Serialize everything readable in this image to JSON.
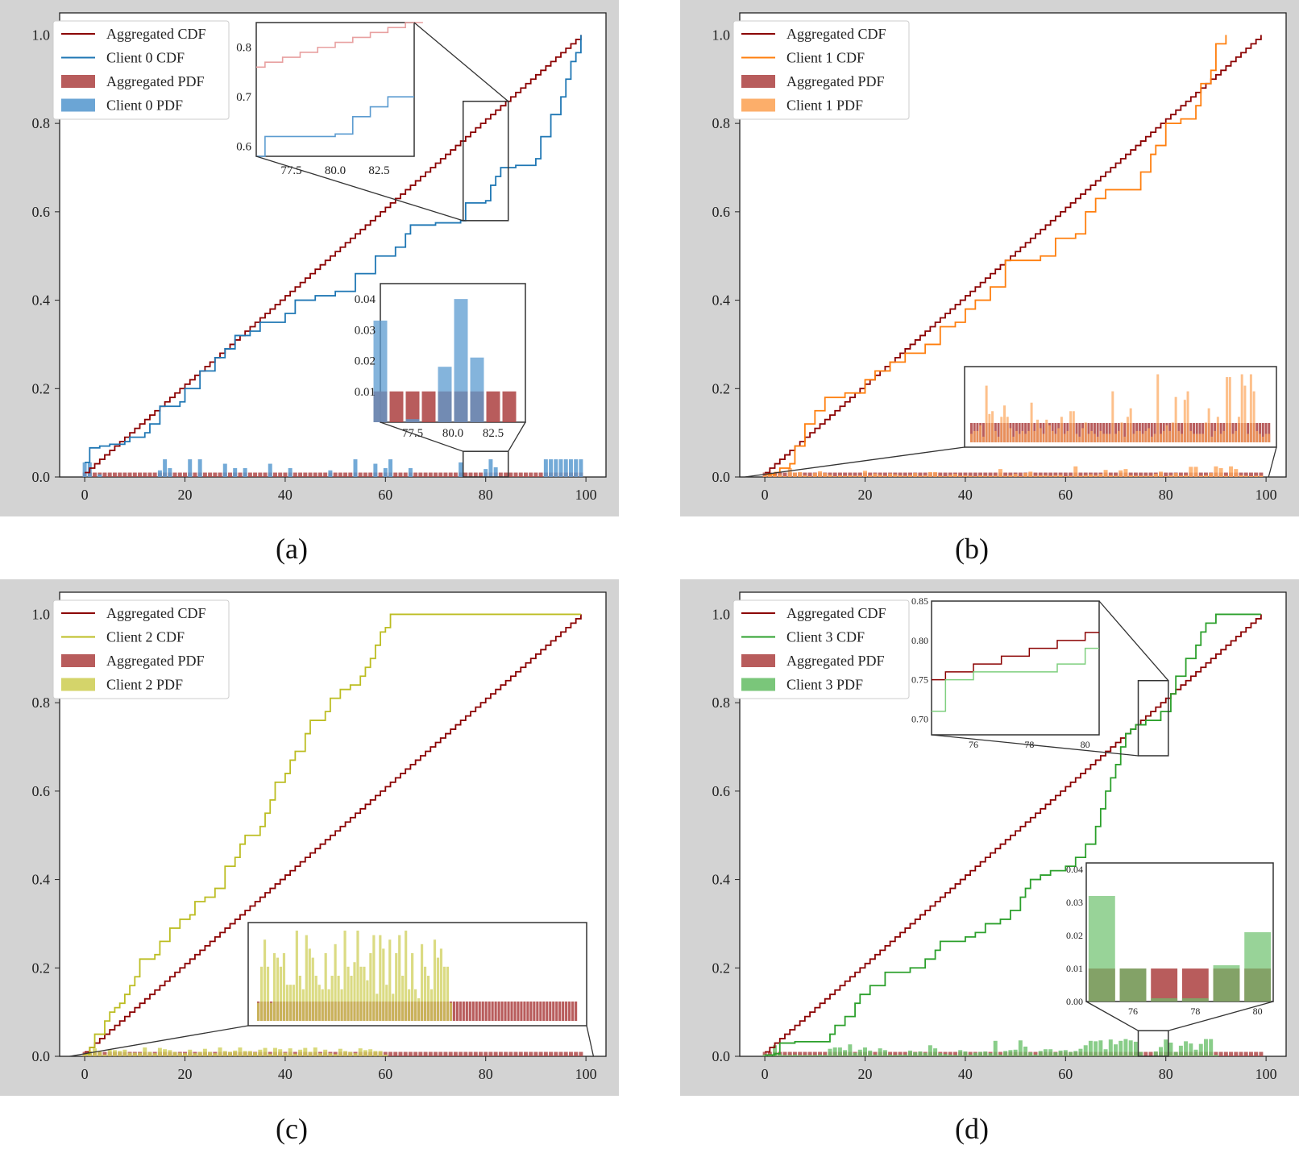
{
  "colors": {
    "aggregated": "#8b0000",
    "aggregated_bar": "#b04a4a",
    "client0": "#1f77b4",
    "client0_bar": "#5b9bd0",
    "client1": "#ff7f0e",
    "client1_bar": "#fca55a",
    "client2": "#bcbd22",
    "client2_bar": "#cfcf5a",
    "client3": "#2ca02c",
    "client3_bar": "#6cc06c",
    "overlap": "#4a5a8a",
    "panel_bg": "#d3d3d3"
  },
  "captions": [
    "(a)",
    "(b)",
    "(c)",
    "(d)"
  ],
  "chart_data": [
    {
      "type": "line",
      "caption": "(a)",
      "client": 0,
      "legend": [
        "Aggregated CDF",
        "Client 0 CDF",
        "Aggregated PDF",
        "Client 0 PDF"
      ],
      "xlim": [
        -5,
        104
      ],
      "ylim": [
        0,
        1.05
      ],
      "xticks": [
        "0",
        "20",
        "40",
        "60",
        "80",
        "100"
      ],
      "yticks": [
        "0.0",
        "0.2",
        "0.4",
        "0.6",
        "0.8",
        "1.0"
      ],
      "aggregated_cdf": "uniform step 0.01 per unit over 0-99",
      "client_cdf_points": [
        [
          0,
          0.033
        ],
        [
          1,
          0.066
        ],
        [
          3,
          0.07
        ],
        [
          5,
          0.074
        ],
        [
          8,
          0.08
        ],
        [
          9,
          0.09
        ],
        [
          12,
          0.1
        ],
        [
          13,
          0.12
        ],
        [
          15,
          0.16
        ],
        [
          19,
          0.17
        ],
        [
          20,
          0.2
        ],
        [
          23,
          0.24
        ],
        [
          26,
          0.27
        ],
        [
          28,
          0.29
        ],
        [
          30,
          0.32
        ],
        [
          33,
          0.33
        ],
        [
          35,
          0.35
        ],
        [
          40,
          0.37
        ],
        [
          42,
          0.4
        ],
        [
          46,
          0.41
        ],
        [
          50,
          0.42
        ],
        [
          54,
          0.46
        ],
        [
          58,
          0.5
        ],
        [
          62,
          0.52
        ],
        [
          64,
          0.55
        ],
        [
          65,
          0.57
        ],
        [
          70,
          0.575
        ],
        [
          75,
          0.58
        ],
        [
          76,
          0.62
        ],
        [
          80,
          0.625
        ],
        [
          81,
          0.66
        ],
        [
          82,
          0.68
        ],
        [
          83,
          0.7
        ],
        [
          86,
          0.705
        ],
        [
          90,
          0.72
        ],
        [
          91,
          0.77
        ],
        [
          93,
          0.82
        ],
        [
          95,
          0.86
        ],
        [
          96,
          0.9
        ],
        [
          97,
          0.94
        ],
        [
          98,
          0.96
        ],
        [
          99,
          1.0
        ]
      ],
      "client_pdf_spikes": [
        [
          0,
          0.033
        ],
        [
          1,
          0.033
        ],
        [
          3,
          0.006
        ],
        [
          15,
          0.015
        ],
        [
          16,
          0.04
        ],
        [
          17,
          0.02
        ],
        [
          21,
          0.04
        ],
        [
          23,
          0.04
        ],
        [
          28,
          0.03
        ],
        [
          30,
          0.02
        ],
        [
          32,
          0.02
        ],
        [
          37,
          0.03
        ],
        [
          41,
          0.02
        ],
        [
          49,
          0.015
        ],
        [
          54,
          0.04
        ],
        [
          58,
          0.03
        ],
        [
          60,
          0.02
        ],
        [
          61,
          0.04
        ],
        [
          65,
          0.02
        ],
        [
          75,
          0.033
        ],
        [
          80,
          0.018
        ],
        [
          81,
          0.04
        ],
        [
          82,
          0.022
        ],
        [
          92,
          0.04
        ],
        [
          93,
          0.04
        ],
        [
          94,
          0.04
        ],
        [
          95,
          0.04
        ],
        [
          96,
          0.04
        ],
        [
          97,
          0.04
        ],
        [
          98,
          0.04
        ],
        [
          99,
          0.04
        ]
      ],
      "insets": [
        {
          "kind": "cdf",
          "xticks": [
            "77.5",
            "80.0",
            "82.5"
          ],
          "yticks": [
            "0.6",
            "0.7",
            "0.8"
          ],
          "xlim": [
            75.5,
            84.5
          ],
          "ylim": [
            0.58,
            0.85
          ]
        },
        {
          "kind": "pdf",
          "xticks": [
            "77.5",
            "80.0",
            "82.5"
          ],
          "yticks": [
            "0.01",
            "0.02",
            "0.03",
            "0.04"
          ],
          "xlim": [
            75.5,
            84.5
          ],
          "ylim": [
            0,
            0.045
          ]
        }
      ]
    },
    {
      "type": "line",
      "caption": "(b)",
      "client": 1,
      "legend": [
        "Aggregated CDF",
        "Client 1 CDF",
        "Aggregated PDF",
        "Client 1 PDF"
      ],
      "xlim": [
        -5,
        104
      ],
      "ylim": [
        0,
        1.05
      ],
      "xticks": [
        "0",
        "20",
        "40",
        "60",
        "80",
        "100"
      ],
      "yticks": [
        "0.0",
        "0.2",
        "0.4",
        "0.6",
        "0.8",
        "1.0"
      ],
      "client_cdf_points": [
        [
          0,
          0.005
        ],
        [
          2,
          0.01
        ],
        [
          3,
          0.02
        ],
        [
          5,
          0.03
        ],
        [
          6,
          0.07
        ],
        [
          8,
          0.12
        ],
        [
          10,
          0.15
        ],
        [
          12,
          0.18
        ],
        [
          16,
          0.19
        ],
        [
          20,
          0.22
        ],
        [
          22,
          0.24
        ],
        [
          25,
          0.26
        ],
        [
          28,
          0.28
        ],
        [
          32,
          0.3
        ],
        [
          35,
          0.34
        ],
        [
          38,
          0.35
        ],
        [
          40,
          0.38
        ],
        [
          42,
          0.4
        ],
        [
          45,
          0.43
        ],
        [
          48,
          0.49
        ],
        [
          55,
          0.5
        ],
        [
          58,
          0.54
        ],
        [
          62,
          0.55
        ],
        [
          64,
          0.6
        ],
        [
          66,
          0.63
        ],
        [
          68,
          0.65
        ],
        [
          75,
          0.69
        ],
        [
          77,
          0.73
        ],
        [
          78,
          0.75
        ],
        [
          80,
          0.8
        ],
        [
          83,
          0.81
        ],
        [
          86,
          0.84
        ],
        [
          87,
          0.89
        ],
        [
          89,
          0.92
        ],
        [
          90,
          0.98
        ],
        [
          92,
          1.0
        ]
      ],
      "client_pdf_heights": [
        0.003,
        0.004,
        0.004,
        0.006,
        0.002,
        0.02,
        0.01,
        0.011,
        0.004,
        0.002,
        0.009,
        0.013,
        0.009,
        0.005,
        0.002,
        0.004,
        0.003,
        0.004,
        0.003,
        0.004,
        0.014,
        0.004,
        0.008,
        0.005,
        0.003,
        0.008,
        0.006,
        0.004,
        0.003,
        0.005,
        0.009,
        0.003,
        0.004,
        0.011,
        0.011,
        0.003,
        0.002,
        0.005,
        0.007,
        0.003,
        0.004,
        0.003,
        0.002,
        0.004,
        0.003,
        0.003,
        0.003,
        0.018,
        0.003,
        0.004,
        0.007,
        0.002,
        0.009,
        0.012,
        0.003,
        0.004,
        0.004,
        0.003,
        0.004,
        0.005,
        0.002,
        0.003,
        0.024,
        0.003,
        0.004,
        0.006,
        0.004,
        0.007,
        0.016,
        0.004,
        0.003,
        0.015,
        0.018,
        0.004,
        0.003,
        0.003,
        0.003,
        0.003,
        0.007,
        0.012,
        0.002,
        0.004,
        0.009,
        0.003,
        0.004,
        0.023,
        0.023,
        0.003,
        0.004,
        0.009,
        0.024,
        0.02,
        0.003,
        0.024,
        0.018,
        0.004,
        0.003,
        0.002,
        0.003,
        0.003
      ]
    },
    {
      "type": "line",
      "caption": "(c)",
      "client": 2,
      "legend": [
        "Aggregated CDF",
        "Client 2 CDF",
        "Aggregated PDF",
        "Client 2 PDF"
      ],
      "xlim": [
        -5,
        104
      ],
      "ylim": [
        0,
        1.05
      ],
      "xticks": [
        "0",
        "20",
        "40",
        "60",
        "80",
        "100"
      ],
      "yticks": [
        "0.0",
        "0.2",
        "0.4",
        "0.6",
        "0.8",
        "1.0"
      ],
      "client_cdf_points": [
        [
          0,
          0.005
        ],
        [
          1,
          0.02
        ],
        [
          2,
          0.05
        ],
        [
          4,
          0.08
        ],
        [
          5,
          0.1
        ],
        [
          6,
          0.11
        ],
        [
          7,
          0.12
        ],
        [
          8,
          0.14
        ],
        [
          9,
          0.16
        ],
        [
          10,
          0.18
        ],
        [
          11,
          0.22
        ],
        [
          14,
          0.23
        ],
        [
          15,
          0.26
        ],
        [
          17,
          0.29
        ],
        [
          19,
          0.31
        ],
        [
          21,
          0.32
        ],
        [
          22,
          0.35
        ],
        [
          24,
          0.36
        ],
        [
          26,
          0.38
        ],
        [
          28,
          0.43
        ],
        [
          30,
          0.45
        ],
        [
          31,
          0.48
        ],
        [
          32,
          0.5
        ],
        [
          35,
          0.52
        ],
        [
          36,
          0.55
        ],
        [
          37,
          0.58
        ],
        [
          38,
          0.62
        ],
        [
          40,
          0.64
        ],
        [
          41,
          0.67
        ],
        [
          42,
          0.69
        ],
        [
          44,
          0.73
        ],
        [
          45,
          0.76
        ],
        [
          48,
          0.78
        ],
        [
          49,
          0.81
        ],
        [
          51,
          0.83
        ],
        [
          53,
          0.84
        ],
        [
          55,
          0.86
        ],
        [
          56,
          0.88
        ],
        [
          57,
          0.9
        ],
        [
          58,
          0.93
        ],
        [
          59,
          0.96
        ],
        [
          60,
          0.97
        ],
        [
          61,
          1.0
        ],
        [
          99,
          1.0
        ]
      ],
      "client_pdf_heights": [
        0.004,
        0.012,
        0.018,
        0.012,
        0.004,
        0.015,
        0.014,
        0.012,
        0.015,
        0.008,
        0.008,
        0.008,
        0.02,
        0.01,
        0.007,
        0.019,
        0.016,
        0.014,
        0.01,
        0.008,
        0.007,
        0.015,
        0.007,
        0.01,
        0.017,
        0.01,
        0.007,
        0.02,
        0.012,
        0.01,
        0.013,
        0.02,
        0.012,
        0.012,
        0.009,
        0.015,
        0.019,
        0.006,
        0.019,
        0.016,
        0.008,
        0.018,
        0.006,
        0.015,
        0.019,
        0.01,
        0.02,
        0.007,
        0.015,
        0.007,
        0.005,
        0.017,
        0.012,
        0.01,
        0.007,
        0.018,
        0.014,
        0.016,
        0.012,
        0.012,
        0.004
      ]
    },
    {
      "type": "line",
      "caption": "(d)",
      "client": 3,
      "legend": [
        "Aggregated CDF",
        "Client 3 CDF",
        "Aggregated PDF",
        "Client 3 PDF"
      ],
      "xlim": [
        -5,
        104
      ],
      "ylim": [
        0,
        1.05
      ],
      "xticks": [
        "0",
        "20",
        "40",
        "60",
        "80",
        "100"
      ],
      "yticks": [
        "0.0",
        "0.2",
        "0.4",
        "0.6",
        "0.8",
        "1.0"
      ],
      "client_cdf_points": [
        [
          0,
          0.003
        ],
        [
          2,
          0.006
        ],
        [
          3,
          0.03
        ],
        [
          6,
          0.033
        ],
        [
          13,
          0.05
        ],
        [
          14,
          0.07
        ],
        [
          16,
          0.09
        ],
        [
          18,
          0.12
        ],
        [
          19,
          0.14
        ],
        [
          21,
          0.16
        ],
        [
          24,
          0.19
        ],
        [
          29,
          0.2
        ],
        [
          32,
          0.22
        ],
        [
          34,
          0.24
        ],
        [
          35,
          0.26
        ],
        [
          40,
          0.27
        ],
        [
          42,
          0.28
        ],
        [
          44,
          0.3
        ],
        [
          47,
          0.31
        ],
        [
          49,
          0.33
        ],
        [
          51,
          0.36
        ],
        [
          52,
          0.38
        ],
        [
          53,
          0.4
        ],
        [
          55,
          0.41
        ],
        [
          57,
          0.42
        ],
        [
          60,
          0.43
        ],
        [
          62,
          0.45
        ],
        [
          64,
          0.48
        ],
        [
          66,
          0.52
        ],
        [
          67,
          0.56
        ],
        [
          68,
          0.6
        ],
        [
          69,
          0.63
        ],
        [
          70,
          0.66
        ],
        [
          71,
          0.7
        ],
        [
          72,
          0.73
        ],
        [
          73,
          0.74
        ],
        [
          74,
          0.75
        ],
        [
          76,
          0.76
        ],
        [
          79,
          0.78
        ],
        [
          81,
          0.82
        ],
        [
          82,
          0.86
        ],
        [
          84,
          0.9
        ],
        [
          86,
          0.93
        ],
        [
          87,
          0.96
        ],
        [
          88,
          0.98
        ],
        [
          90,
          1.0
        ],
        [
          99,
          1.0
        ]
      ],
      "client_pdf_heights": [
        0.004,
        0.003,
        0.025,
        0.005,
        0.003,
        0.003,
        0.004,
        0.003,
        0.003,
        0.003,
        0.003,
        0.004,
        0.003,
        0.017,
        0.02,
        0.02,
        0.014,
        0.027,
        0.008,
        0.015,
        0.02,
        0.013,
        0.004,
        0.018,
        0.014,
        0.004,
        0.003,
        0.004,
        0.004,
        0.013,
        0.009,
        0.011,
        0.008,
        0.025,
        0.018,
        0.007,
        0.005,
        0.004,
        0.003,
        0.014,
        0.011,
        0.004,
        0.008,
        0.01,
        0.011,
        0.007,
        0.035,
        0.004,
        0.012,
        0.014,
        0.015,
        0.036,
        0.022,
        0.009,
        0.004,
        0.012,
        0.016,
        0.016,
        0.009,
        0.013,
        0.014,
        0.01,
        0.012,
        0.017,
        0.025,
        0.035,
        0.034,
        0.036,
        0.016,
        0.038,
        0.027,
        0.035,
        0.039,
        0.036,
        0.033,
        0.01,
        0.001,
        0.001,
        0.011,
        0.021,
        0.038,
        0.031,
        0.01,
        0.024,
        0.034,
        0.029,
        0.015,
        0.028,
        0.039,
        0.039,
        0.003
      ],
      "insets": [
        {
          "kind": "cdf",
          "xticks": [
            "76",
            "78",
            "80"
          ],
          "yticks": [
            "0.70",
            "0.75",
            "0.80",
            "0.85"
          ],
          "xlim": [
            74.5,
            80.5
          ],
          "ylim": [
            0.68,
            0.85
          ]
        },
        {
          "kind": "pdf",
          "xticks": [
            "76",
            "78",
            "80"
          ],
          "yticks": [
            "0.00",
            "0.01",
            "0.02",
            "0.03",
            "0.04"
          ],
          "xlim": [
            74.5,
            80.5
          ],
          "ylim": [
            0,
            0.042
          ]
        }
      ]
    }
  ]
}
